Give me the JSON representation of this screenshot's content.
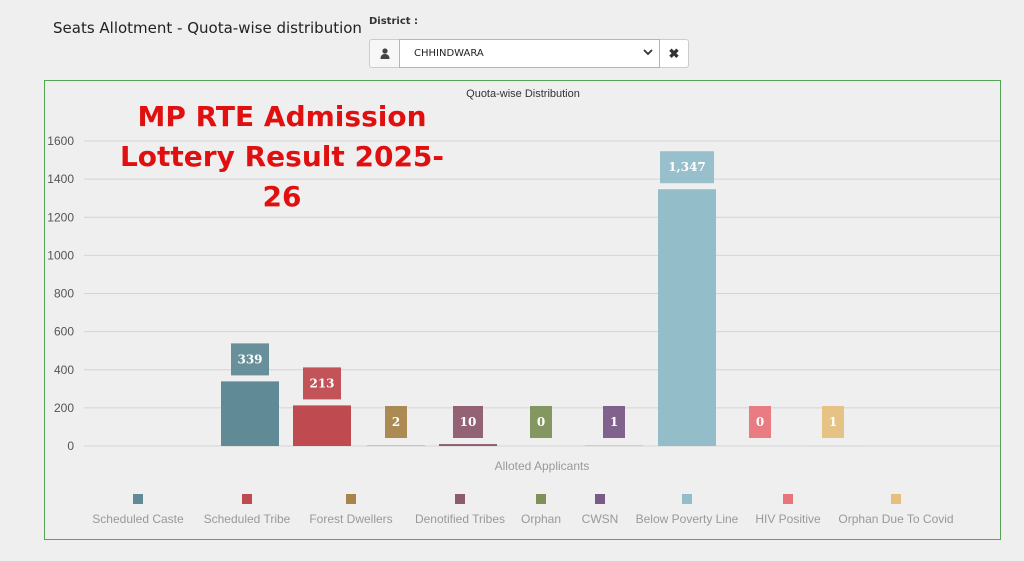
{
  "header": {
    "title": "Seats Allotment - Quota-wise distribution",
    "district_label": "District :",
    "district_value": "CHHINDWARA",
    "user_icon": "user-icon",
    "clear_icon": "close-icon",
    "chevron_icon": "chevron-down-icon"
  },
  "overlay": {
    "line1": "MP RTE Admission",
    "line2": "Lottery Result 2025-26"
  },
  "chart_data": {
    "type": "bar",
    "title": "Quota-wise Distribution",
    "xlabel": "Alloted Applicants",
    "ylabel": "",
    "ylim": [
      0,
      1600
    ],
    "yticks": [
      0,
      200,
      400,
      600,
      800,
      1000,
      1200,
      1400,
      1600
    ],
    "grid": true,
    "legend_position": "bottom",
    "categories": [
      "Scheduled Caste",
      "Scheduled Tribe",
      "Forest Dwellers",
      "Denotified Tribes",
      "Orphan",
      "CWSN",
      "Below Poverty Line",
      "HIV Positive",
      "Orphan Due To Covid"
    ],
    "values": [
      339,
      213,
      2,
      10,
      0,
      1,
      1347,
      0,
      1
    ],
    "value_labels": [
      "339",
      "213",
      "2",
      "10",
      "0",
      "1",
      "1,347",
      "0",
      "1"
    ],
    "colors": [
      "#5f8a96",
      "#bf4b50",
      "#a8844a",
      "#8e5a6e",
      "#7d9158",
      "#7a5a86",
      "#92bdc9",
      "#e8757c",
      "#e6bf7e"
    ]
  }
}
